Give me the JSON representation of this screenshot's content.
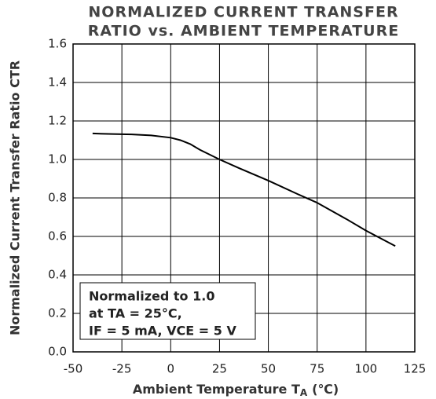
{
  "chart_data": {
    "type": "line",
    "title": [
      "NORMALIZED CURRENT TRANSFER",
      "RATIO vs. AMBIENT TEMPERATURE"
    ],
    "xlabel": {
      "text": "Ambient Temperature T",
      "subscript": "A",
      "unit": "(℃)"
    },
    "ylabel": "Normalized Current Transfer Ratio  CTR",
    "annotation": [
      "Normalized to 1.0",
      "at TA = 25°C,",
      "IF = 5 mA, VCE = 5 V"
    ],
    "series": [
      {
        "color": "#000000",
        "x": [
          -40,
          -30,
          -20,
          -10,
          0,
          5,
          10,
          15,
          20,
          25,
          35,
          50,
          65,
          75,
          90,
          100,
          115
        ],
        "values": [
          1.135,
          1.132,
          1.13,
          1.125,
          1.113,
          1.1,
          1.08,
          1.05,
          1.025,
          1.0,
          0.955,
          0.89,
          0.82,
          0.775,
          0.69,
          0.63,
          0.55
        ]
      }
    ],
    "xlim": [
      -50,
      125
    ],
    "xticks": [
      -50,
      -25,
      0,
      25,
      50,
      75,
      100,
      125
    ],
    "ylim": [
      0,
      1.6
    ],
    "yticks": [
      {
        "value": 0,
        "label": "0.0"
      },
      0.2,
      0.4,
      0.6,
      0.8,
      {
        "value": 1,
        "label": "1.0"
      },
      1.2,
      1.4,
      1.6
    ],
    "grid": true
  }
}
